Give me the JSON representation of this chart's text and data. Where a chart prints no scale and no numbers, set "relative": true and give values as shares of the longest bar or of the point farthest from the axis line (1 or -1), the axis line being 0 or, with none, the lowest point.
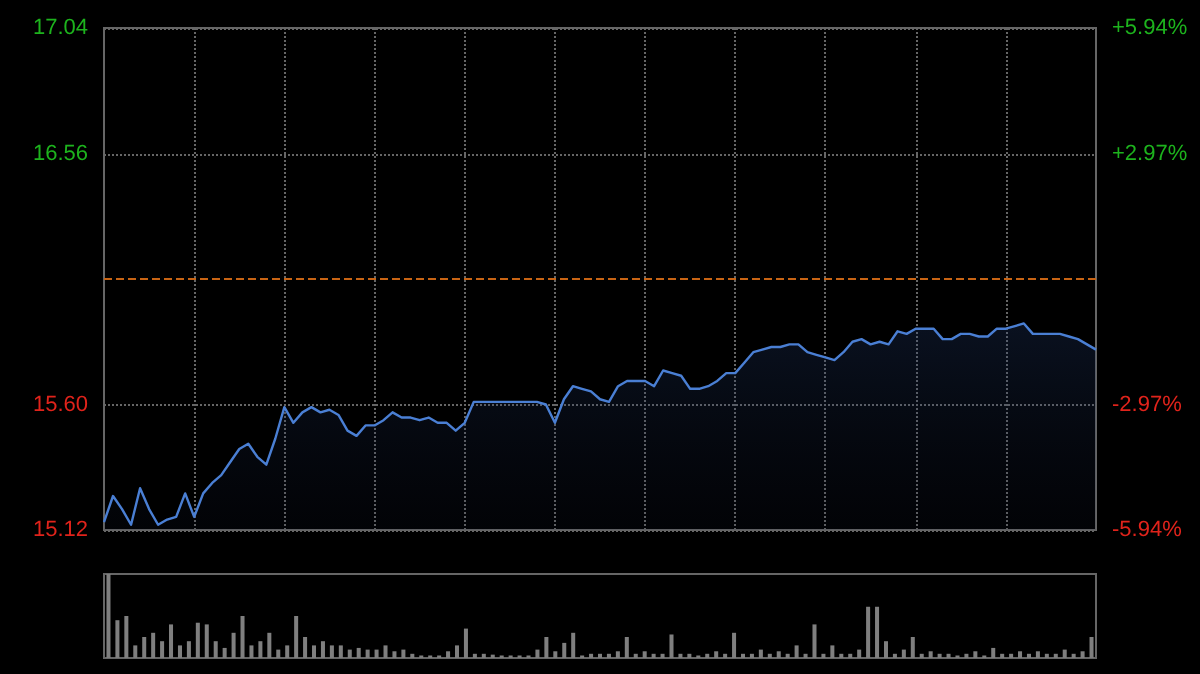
{
  "chart_data": [
    {
      "type": "area",
      "categories": [
        null,
        null,
        null,
        null,
        null,
        null,
        null,
        null,
        null,
        null,
        null,
        null,
        null,
        null,
        null,
        null,
        null,
        null,
        null,
        null,
        null,
        null,
        null,
        null,
        null,
        null,
        null,
        null,
        null,
        null,
        null,
        null,
        null,
        null,
        null,
        null,
        null,
        null,
        null,
        null,
        null,
        null,
        null,
        null,
        null,
        null,
        null,
        null,
        null,
        null,
        null,
        null,
        null,
        null,
        null,
        null,
        null,
        null,
        null,
        null,
        null,
        null,
        null,
        null,
        null,
        null,
        null,
        null,
        null,
        null,
        null,
        null,
        null,
        null,
        null,
        null,
        null,
        null,
        null,
        null,
        null,
        null,
        null,
        null,
        null,
        null,
        null,
        null,
        null,
        null,
        null,
        null,
        null,
        null,
        null,
        null,
        null,
        null,
        null,
        null,
        null,
        null,
        null,
        null,
        null,
        null,
        null,
        null,
        null,
        null,
        null
      ],
      "series": [
        {
          "color": "#4a7fd4",
          "values": [
            15.15,
            15.25,
            15.2,
            15.14,
            15.28,
            15.2,
            15.14,
            15.16,
            15.17,
            15.26,
            15.17,
            15.26,
            15.3,
            15.33,
            15.38,
            15.43,
            15.45,
            15.4,
            15.37,
            15.47,
            15.59,
            15.53,
            15.57,
            15.59,
            15.57,
            15.58,
            15.56,
            15.5,
            15.48,
            15.52,
            15.52,
            15.54,
            15.57,
            15.55,
            15.55,
            15.54,
            15.55,
            15.53,
            15.53,
            15.5,
            15.53,
            15.61,
            15.61,
            15.61,
            15.61,
            15.61,
            15.61,
            15.61,
            15.61,
            15.6,
            15.53,
            15.62,
            15.67,
            15.66,
            15.65,
            15.62,
            15.61,
            15.67,
            15.69,
            15.69,
            15.69,
            15.67,
            15.73,
            15.72,
            15.71,
            15.66,
            15.66,
            15.67,
            15.69,
            15.72,
            15.72,
            15.76,
            15.8,
            15.81,
            15.82,
            15.82,
            15.83,
            15.83,
            15.8,
            15.79,
            15.78,
            15.77,
            15.8,
            15.84,
            15.85,
            15.83,
            15.84,
            15.83,
            15.88,
            15.87,
            15.89,
            15.89,
            15.89,
            15.85,
            15.85,
            15.87,
            15.87,
            15.86,
            15.86,
            15.89,
            15.89,
            15.9,
            15.91,
            15.87,
            15.87,
            15.87,
            15.87,
            15.86,
            15.85,
            15.83,
            15.81
          ]
        }
      ],
      "ylim": [
        15.12,
        17.04
      ],
      "yticks": [
        15.12,
        {
          "value": 15.6,
          "label": "15.60"
        },
        16.56,
        17.04
      ],
      "y2lim": [
        -5.94,
        5.94
      ],
      "y2ticks": [
        {
          "value": -5.94,
          "label": "-5.94%"
        },
        {
          "value": -2.97,
          "label": "-2.97%"
        },
        {
          "value": 2.97,
          "label": "+2.97%"
        },
        {
          "value": 5.94,
          "label": "+5.94%"
        }
      ],
      "ref_lines": [
        {
          "axis": "y",
          "value": 16.08,
          "color": "#c86414",
          "line_style": "dashed"
        }
      ],
      "grid": true,
      "marker": "none"
    },
    {
      "type": "bar",
      "relative": true,
      "categories": [
        null,
        null,
        null,
        null,
        null,
        null,
        null,
        null,
        null,
        null,
        null,
        null,
        null,
        null,
        null,
        null,
        null,
        null,
        null,
        null,
        null,
        null,
        null,
        null,
        null,
        null,
        null,
        null,
        null,
        null,
        null,
        null,
        null,
        null,
        null,
        null,
        null,
        null,
        null,
        null,
        null,
        null,
        null,
        null,
        null,
        null,
        null,
        null,
        null,
        null,
        null,
        null,
        null,
        null,
        null,
        null,
        null,
        null,
        null,
        null,
        null,
        null,
        null,
        null,
        null,
        null,
        null,
        null,
        null,
        null,
        null,
        null,
        null,
        null,
        null,
        null,
        null,
        null,
        null,
        null,
        null,
        null,
        null,
        null,
        null,
        null,
        null,
        null,
        null,
        null,
        null,
        null,
        null,
        null,
        null,
        null,
        null,
        null,
        null,
        null,
        null,
        null,
        null,
        null,
        null,
        null,
        null,
        null,
        null,
        null,
        null
      ],
      "series": [
        {
          "color": "#7f7f7f",
          "values": [
            1,
            0.45,
            0.5,
            0.15,
            0.25,
            0.3,
            0.2,
            0.4,
            0.15,
            0.2,
            0.42,
            0.4,
            0.2,
            0.12,
            0.3,
            0.5,
            0.15,
            0.2,
            0.3,
            0.1,
            0.15,
            0.5,
            0.25,
            0.15,
            0.2,
            0.15,
            0.15,
            0.1,
            0.12,
            0.1,
            0.1,
            0.15,
            0.08,
            0.1,
            0.05,
            0.03,
            0.03,
            0.03,
            0.08,
            0.15,
            0.35,
            0.05,
            0.05,
            0.04,
            0.03,
            0.03,
            0.03,
            0.03,
            0.1,
            0.25,
            0.08,
            0.18,
            0.3,
            0.03,
            0.05,
            0.05,
            0.05,
            0.08,
            0.25,
            0.05,
            0.08,
            0.05,
            0.05,
            0.28,
            0.05,
            0.05,
            0.03,
            0.05,
            0.08,
            0.05,
            0.3,
            0.05,
            0.05,
            0.1,
            0.05,
            0.08,
            0.05,
            0.15,
            0.05,
            0.4,
            0.05,
            0.15,
            0.05,
            0.05,
            0.1,
            0.61,
            0.61,
            0.2,
            0.05,
            0.1,
            0.25,
            0.05,
            0.08,
            0.05,
            0.05,
            0.03,
            0.05,
            0.08,
            0.03,
            0.12,
            0.05,
            0.05,
            0.08,
            0.05,
            0.08,
            0.05,
            0.05,
            0.1,
            0.05,
            0.08,
            0.25
          ]
        }
      ],
      "grid": false
    }
  ]
}
